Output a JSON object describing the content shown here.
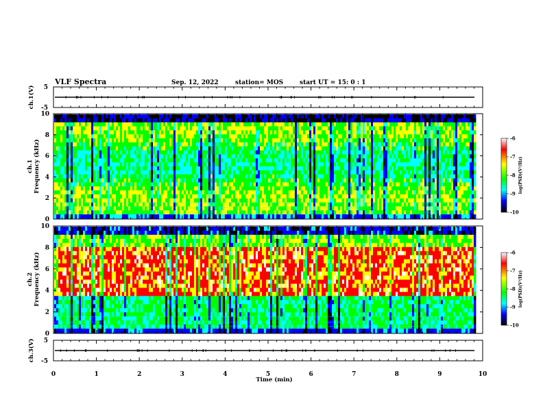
{
  "header": {
    "title": "VLF Spectra",
    "date": "Sep. 12, 2022",
    "station": "station= MOS",
    "start": "start  UT =  15: 0  : 1"
  },
  "colors": {
    "colormap": [
      "#ffffff",
      "#ff0000",
      "#ffff00",
      "#00ff00",
      "#00ffff",
      "#0000ff",
      "#000000"
    ],
    "trace": "#000000",
    "frame": "#000000"
  },
  "chart_data": [
    {
      "type": "line",
      "name": "ch1-voltage",
      "ylabel": "ch.1(V)",
      "ylim": [
        -5,
        5
      ],
      "yticks": [
        "5",
        "-5"
      ],
      "x": [
        0,
        9.8
      ],
      "y": [
        0,
        0
      ]
    },
    {
      "type": "heatmap",
      "name": "ch1-spectrogram",
      "ylabel": "ch.1\nFrequency (kHz)",
      "ylim": [
        0,
        10
      ],
      "yticks": [
        "0",
        "2",
        "4",
        "6",
        "8",
        "10"
      ],
      "xlim": [
        0,
        9.8
      ],
      "colorbar": {
        "label": "log(PSD)(V²/Hz)",
        "ticks": [
          "-6",
          "-7",
          "-8",
          "-9",
          "-10"
        ],
        "range": [
          -10,
          -6
        ]
      }
    },
    {
      "type": "heatmap",
      "name": "ch2-spectrogram",
      "ylabel": "ch.2\nFrequency (kHz)",
      "ylim": [
        0,
        10
      ],
      "yticks": [
        "0",
        "2",
        "4",
        "6",
        "8",
        "10"
      ],
      "xlim": [
        0,
        9.8
      ],
      "colorbar": {
        "label": "log(PSD)(V²/Hz)",
        "ticks": [
          "-6",
          "-7",
          "-8",
          "-9",
          "-10"
        ],
        "range": [
          -10,
          -6
        ]
      }
    },
    {
      "type": "line",
      "name": "ch3-voltage",
      "ylabel": "ch.3(V)",
      "ylim": [
        -5,
        5
      ],
      "yticks": [
        "5",
        "-5"
      ],
      "x": [
        0,
        9.8
      ],
      "y": [
        0,
        0
      ]
    }
  ],
  "xaxis": {
    "label": "Time (min)",
    "range": [
      0,
      10
    ],
    "ticks": [
      "0",
      "1",
      "2",
      "3",
      "4",
      "5",
      "6",
      "7",
      "8",
      "9",
      "10"
    ]
  }
}
